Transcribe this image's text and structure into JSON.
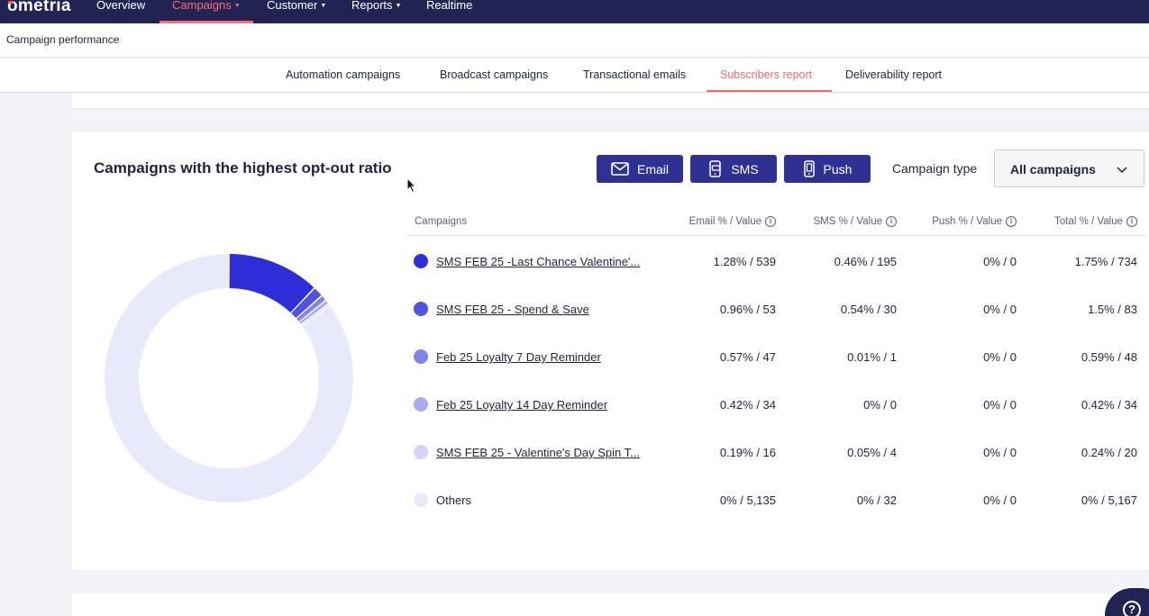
{
  "app": {
    "logo": "ometria"
  },
  "nav": {
    "items": [
      {
        "label": "Overview",
        "active": false
      },
      {
        "label": "Campaigns",
        "active": true,
        "dropdown": true
      },
      {
        "label": "Customer",
        "active": false,
        "dropdown": true
      },
      {
        "label": "Reports",
        "active": false,
        "dropdown": true
      },
      {
        "label": "Realtime",
        "active": false
      }
    ]
  },
  "breadcrumb": "Campaign performance",
  "subtabs": [
    {
      "label": "Automation campaigns",
      "active": false
    },
    {
      "label": "Broadcast campaigns",
      "active": false
    },
    {
      "label": "Transactional emails",
      "active": false
    },
    {
      "label": "Subscribers report",
      "active": true
    },
    {
      "label": "Deliverability report",
      "active": false
    }
  ],
  "card": {
    "title": "Campaigns with the highest opt-out ratio",
    "channel_buttons": [
      {
        "label": "Email",
        "icon": "envelope-icon"
      },
      {
        "label": "SMS",
        "icon": "sms-phone-icon"
      },
      {
        "label": "Push",
        "icon": "mobile-phone-icon"
      }
    ],
    "campaign_type_label": "Campaign type",
    "campaign_type_value": "All campaigns"
  },
  "table": {
    "headers": [
      "Campaigns",
      "Email % / Value",
      "SMS % / Value",
      "Push % / Value",
      "Total % / Value"
    ],
    "rows": [
      {
        "name": "SMS FEB 25 -Last Chance Valentine'...",
        "email": "1.28% / 539",
        "sms": "0.46% / 195",
        "push": "0% / 0",
        "total": "1.75% / 734",
        "color": "#2d2ed8",
        "link": true
      },
      {
        "name": "SMS FEB 25 - Spend & Save",
        "email": "0.96% / 53",
        "sms": "0.54% / 30",
        "push": "0% / 0",
        "total": "1.5% / 83",
        "color": "#5152e2",
        "link": true
      },
      {
        "name": "Feb 25 Loyalty 7 Day Reminder",
        "email": "0.57% / 47",
        "sms": "0.01% / 1",
        "push": "0% / 0",
        "total": "0.59% / 48",
        "color": "#8282eb",
        "link": true
      },
      {
        "name": "Feb 25 Loyalty 14 Day Reminder",
        "email": "0.42% / 34",
        "sms": "0% / 0",
        "push": "0% / 0",
        "total": "0.42% / 34",
        "color": "#a9aaf0",
        "link": true
      },
      {
        "name": "SMS FEB 25 - Valentine's Day Spin T...",
        "email": "0.19% / 16",
        "sms": "0.05% / 4",
        "push": "0% / 0",
        "total": "0.24% / 20",
        "color": "#d2d3f7",
        "link": true
      },
      {
        "name": "Others",
        "email": "0% / 5,135",
        "sms": "0% / 32",
        "push": "0% / 0",
        "total": "0% / 5,167",
        "color": "#e8e9fa",
        "link": false
      }
    ]
  },
  "chart_data": {
    "type": "pie",
    "donut": true,
    "categories": [
      "SMS FEB 25 -Last Chance Valentine'...",
      "SMS FEB 25 - Spend & Save",
      "Feb 25 Loyalty 7 Day Reminder",
      "Feb 25 Loyalty 14 Day Reminder",
      "SMS FEB 25 - Valentine's Day Spin T...",
      "Others"
    ],
    "values": [
      734,
      83,
      48,
      34,
      20,
      5167
    ],
    "colors": [
      "#2d2ed8",
      "#5152e2",
      "#8282eb",
      "#a9aaf0",
      "#d2d3f7",
      "#e8e9fa"
    ]
  },
  "help": {
    "icon": "help-icon",
    "glyph": "?"
  }
}
